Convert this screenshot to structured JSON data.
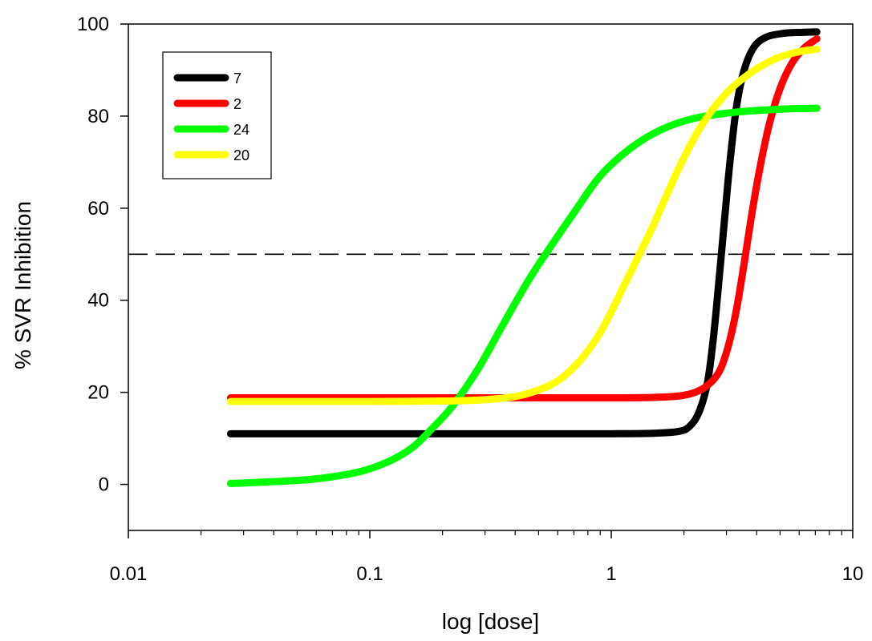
{
  "chart_data": {
    "type": "line",
    "title": "",
    "xlabel": "log [dose]",
    "ylabel": "% SVR Inhibition",
    "x_scale": "log",
    "xlim": [
      0.01,
      10
    ],
    "ylim": [
      -10,
      100
    ],
    "x_ticks": [
      {
        "value": 0.01,
        "label": "0.01"
      },
      {
        "value": 0.1,
        "label": "0.1"
      },
      {
        "value": 1,
        "label": "1"
      },
      {
        "value": 10,
        "label": "10"
      }
    ],
    "y_ticks": [
      {
        "value": 0,
        "label": "0"
      },
      {
        "value": 20,
        "label": "20"
      },
      {
        "value": 40,
        "label": "40"
      },
      {
        "value": 60,
        "label": "60"
      },
      {
        "value": 80,
        "label": "80"
      },
      {
        "value": 100,
        "label": "100"
      }
    ],
    "reference_line": {
      "y": 50,
      "style": "dashed",
      "color": "#000000"
    },
    "grid": false,
    "legend_position": "top-left",
    "series": [
      {
        "name": "7",
        "color": "#000000",
        "points": [
          [
            0.0265,
            11.0
          ],
          [
            0.05,
            11.0
          ],
          [
            0.1,
            11.0
          ],
          [
            0.3,
            11.0
          ],
          [
            0.6,
            11.0
          ],
          [
            1.0,
            11.0
          ],
          [
            1.5,
            11.1
          ],
          [
            1.9,
            11.5
          ],
          [
            2.1,
            12.5
          ],
          [
            2.3,
            15.5
          ],
          [
            2.5,
            22.0
          ],
          [
            2.65,
            32.0
          ],
          [
            2.8,
            45.0
          ],
          [
            2.95,
            58.0
          ],
          [
            3.1,
            70.0
          ],
          [
            3.3,
            82.0
          ],
          [
            3.55,
            90.0
          ],
          [
            3.9,
            95.0
          ],
          [
            4.4,
            97.2
          ],
          [
            5.2,
            98.0
          ],
          [
            6.2,
            98.2
          ],
          [
            7.1,
            98.3
          ]
        ]
      },
      {
        "name": "2",
        "color": "#ff0000",
        "points": [
          [
            0.0265,
            18.8
          ],
          [
            0.05,
            18.8
          ],
          [
            0.1,
            18.8
          ],
          [
            0.3,
            18.8
          ],
          [
            0.6,
            18.8
          ],
          [
            1.0,
            18.8
          ],
          [
            1.5,
            18.9
          ],
          [
            1.9,
            19.2
          ],
          [
            2.2,
            19.9
          ],
          [
            2.5,
            21.5
          ],
          [
            2.8,
            24.5
          ],
          [
            3.05,
            30.0
          ],
          [
            3.3,
            38.0
          ],
          [
            3.55,
            48.0
          ],
          [
            3.8,
            58.0
          ],
          [
            4.1,
            68.0
          ],
          [
            4.5,
            78.0
          ],
          [
            5.0,
            86.0
          ],
          [
            5.6,
            91.5
          ],
          [
            6.3,
            94.8
          ],
          [
            7.1,
            96.8
          ]
        ]
      },
      {
        "name": "24",
        "color": "#00ff00",
        "points": [
          [
            0.0265,
            0.2
          ],
          [
            0.04,
            0.6
          ],
          [
            0.06,
            1.2
          ],
          [
            0.09,
            2.7
          ],
          [
            0.12,
            5.0
          ],
          [
            0.15,
            8.0
          ],
          [
            0.18,
            12.0
          ],
          [
            0.22,
            17.0
          ],
          [
            0.28,
            25.0
          ],
          [
            0.35,
            34.0
          ],
          [
            0.45,
            44.0
          ],
          [
            0.55,
            51.0
          ],
          [
            0.7,
            59.0
          ],
          [
            0.9,
            67.0
          ],
          [
            1.2,
            73.0
          ],
          [
            1.6,
            77.0
          ],
          [
            2.2,
            79.5
          ],
          [
            3.2,
            80.8
          ],
          [
            5.0,
            81.5
          ],
          [
            7.1,
            81.7
          ]
        ]
      },
      {
        "name": "20",
        "color": "#ffff00",
        "points": [
          [
            0.0265,
            18.0
          ],
          [
            0.05,
            18.0
          ],
          [
            0.1,
            18.0
          ],
          [
            0.2,
            18.1
          ],
          [
            0.3,
            18.4
          ],
          [
            0.4,
            19.1
          ],
          [
            0.5,
            20.5
          ],
          [
            0.6,
            22.5
          ],
          [
            0.7,
            25.5
          ],
          [
            0.8,
            29.0
          ],
          [
            0.9,
            33.0
          ],
          [
            1.0,
            37.5
          ],
          [
            1.1,
            42.0
          ],
          [
            1.2,
            46.0
          ],
          [
            1.35,
            51.5
          ],
          [
            1.5,
            56.5
          ],
          [
            1.7,
            63.0
          ],
          [
            2.0,
            71.0
          ],
          [
            2.4,
            78.5
          ],
          [
            3.0,
            85.0
          ],
          [
            3.8,
            89.5
          ],
          [
            4.8,
            92.5
          ],
          [
            6.0,
            94.0
          ],
          [
            7.1,
            94.5
          ]
        ]
      }
    ]
  }
}
